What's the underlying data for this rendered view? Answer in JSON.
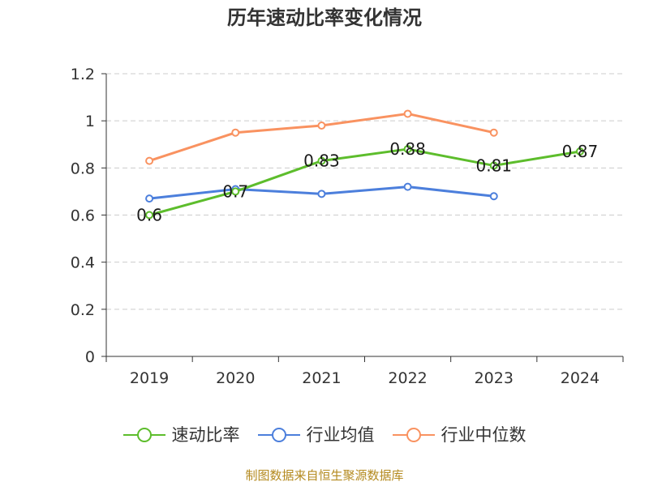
{
  "colors": {
    "speed_ratio": "#5dbd2c",
    "industry_avg": "#4c7fdc",
    "industry_median": "#f99260",
    "grid": "#cccccc",
    "axis": "#333333",
    "source_text": "#b48a1f"
  },
  "chart_data": {
    "type": "line",
    "title": "历年速动比率变化情况",
    "xlabel": "",
    "ylabel": "",
    "categories": [
      "2019",
      "2020",
      "2021",
      "2022",
      "2023",
      "2024"
    ],
    "ylim": [
      0,
      1.2
    ],
    "y_ticks": [
      "0",
      "0.2",
      "0.4",
      "0.6",
      "0.8",
      "1",
      "1.2"
    ],
    "grid": true,
    "legend_position": "bottom",
    "series": [
      {
        "name": "速动比率",
        "values": [
          0.6,
          0.7,
          0.83,
          0.88,
          0.81,
          0.87
        ],
        "labels": [
          "0.6",
          "0.7",
          "0.83",
          "0.88",
          "0.81",
          "0.87"
        ]
      },
      {
        "name": "行业均值",
        "values": [
          0.67,
          0.71,
          0.69,
          0.72,
          0.68,
          null
        ]
      },
      {
        "name": "行业中位数",
        "values": [
          0.83,
          0.95,
          0.98,
          1.03,
          0.95,
          null
        ]
      }
    ]
  },
  "source": "制图数据来自恒生聚源数据库"
}
